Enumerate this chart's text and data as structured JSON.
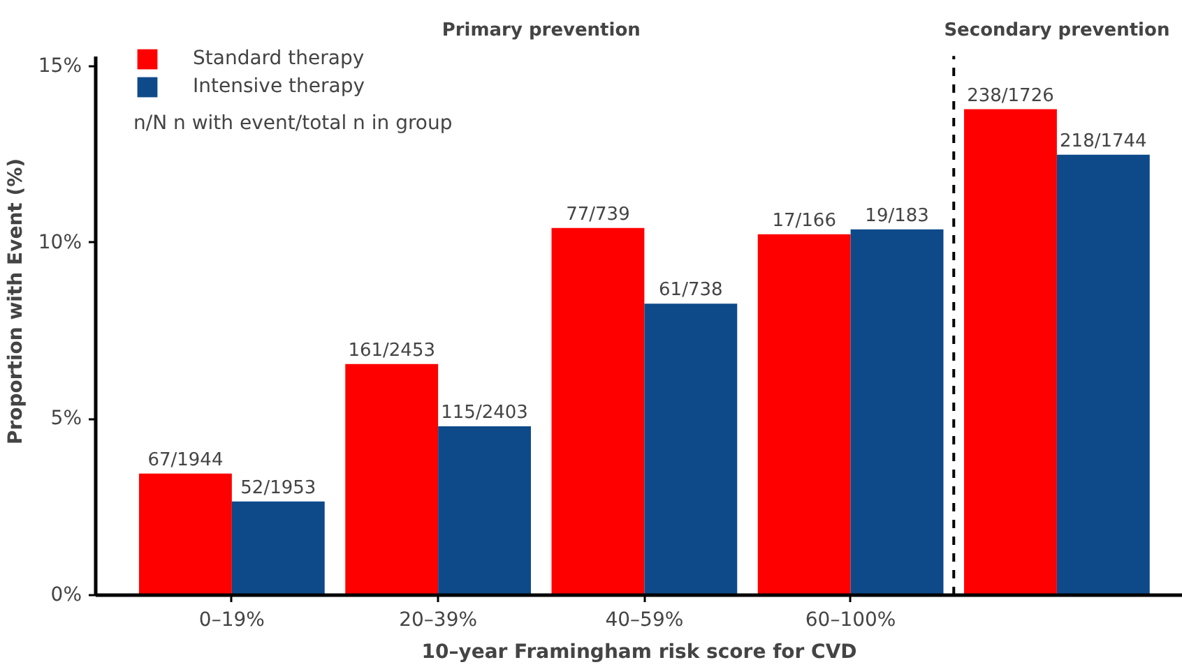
{
  "chart_data": {
    "type": "bar",
    "xlabel": "10–year Framingham risk score for CVD",
    "ylabel": "Proportion with Event (%)",
    "categories": [
      "0–19%",
      "20–39%",
      "40–59%",
      "60–100%",
      null
    ],
    "series": [
      {
        "name": "Standard therapy",
        "color": "#ff0000",
        "values": [
          3.45,
          6.56,
          10.42,
          10.24,
          13.79
        ],
        "value_labels": [
          "67/1944",
          "161/2453",
          "77/739",
          "17/166",
          "238/1726"
        ]
      },
      {
        "name": "Intensive therapy",
        "color": "#0e4a8a",
        "values": [
          2.66,
          4.79,
          8.27,
          10.38,
          12.5
        ],
        "value_labels": [
          "52/1953",
          "115/2403",
          "61/738",
          "19/183",
          "218/1744"
        ]
      }
    ],
    "ylim": [
      0,
      15.3
    ],
    "yticks": [
      {
        "value": 0,
        "label": "0%"
      },
      {
        "value": 5,
        "label": "5%"
      },
      {
        "value": 10,
        "label": "10%"
      },
      {
        "value": 15,
        "label": "15%"
      }
    ],
    "grid": false,
    "legend": "top left",
    "annotations": [
      "Primary prevention",
      "Secondary prevention",
      "n/N  n with event/total n in group"
    ]
  }
}
